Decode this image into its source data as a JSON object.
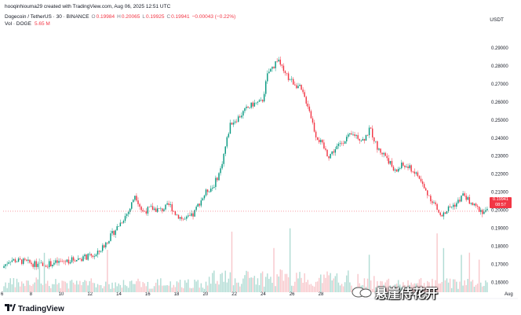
{
  "header": {
    "created_by": "hooqinhiouma29 created with TradingView.com, Aug 06, 2025 12:51 UTC"
  },
  "symbol_line": {
    "symbol": "Dogecoin / TetherUS · 30 · BINANCE",
    "open_label": "O",
    "open": "0.19984",
    "high_label": "H",
    "high": "0.20065",
    "low_label": "L",
    "low": "0.19925",
    "close_label": "C",
    "close": "0.19941",
    "change": "−0.00043 (−0.22%)"
  },
  "volume_line": {
    "label": "Vol · DOGE",
    "value": "5.65 M"
  },
  "currency": "USDT",
  "price_tag": {
    "price": "0.19941",
    "countdown": "08:57"
  },
  "branding": {
    "logo_text": "TradingView"
  },
  "watermark": {
    "text": "悬崖侍花开"
  },
  "colors": {
    "up": "#089981",
    "down": "#f23645",
    "up_volume": "#a8d8cf",
    "down_volume": "#f7c2c6"
  },
  "chart_data": {
    "type": "candlestick",
    "title": "",
    "x_ticks": [
      "6",
      "8",
      "10",
      "12",
      "14",
      "16",
      "18",
      "20",
      "22",
      "24",
      "26",
      "28",
      "Aug"
    ],
    "y_ticks": [
      "0.29000",
      "0.28000",
      "0.27000",
      "0.26000",
      "0.25000",
      "0.24000",
      "0.23000",
      "0.22000",
      "0.21000",
      "0.20000",
      "0.19000",
      "0.18000",
      "0.17000",
      "0.16000"
    ],
    "ylim": [
      0.1545,
      0.297
    ],
    "grid": false,
    "price_path": [
      [
        0,
        0.168
      ],
      [
        0.5,
        0.1725
      ],
      [
        1.5,
        0.1715
      ],
      [
        2.5,
        0.1695
      ],
      [
        3.5,
        0.1705
      ],
      [
        4.5,
        0.172
      ],
      [
        5.5,
        0.1735
      ],
      [
        6.5,
        0.175
      ],
      [
        7,
        0.18
      ],
      [
        8,
        0.191
      ],
      [
        8.8,
        0.2
      ],
      [
        9.2,
        0.209
      ],
      [
        9.7,
        0.199
      ],
      [
        10.3,
        0.201
      ],
      [
        11,
        0.2
      ],
      [
        11.6,
        0.203
      ],
      [
        12,
        0.198
      ],
      [
        12.6,
        0.1945
      ],
      [
        13.2,
        0.197
      ],
      [
        13.6,
        0.2035
      ],
      [
        14.2,
        0.211
      ],
      [
        14.6,
        0.213
      ],
      [
        15.1,
        0.222
      ],
      [
        15.8,
        0.248
      ],
      [
        16.3,
        0.251
      ],
      [
        16.9,
        0.256
      ],
      [
        17.4,
        0.259
      ],
      [
        18,
        0.26
      ],
      [
        18.4,
        0.276
      ],
      [
        18.8,
        0.28
      ],
      [
        19.1,
        0.2845
      ],
      [
        19.5,
        0.276
      ],
      [
        20,
        0.272
      ],
      [
        20.6,
        0.268
      ],
      [
        21.2,
        0.258
      ],
      [
        21.7,
        0.242
      ],
      [
        22.1,
        0.237
      ],
      [
        22.6,
        0.23
      ],
      [
        23.2,
        0.235
      ],
      [
        23.8,
        0.24
      ],
      [
        24.4,
        0.242
      ],
      [
        25,
        0.239
      ],
      [
        25.5,
        0.245
      ],
      [
        26,
        0.234
      ],
      [
        26.6,
        0.23
      ],
      [
        27.2,
        0.221
      ],
      [
        27.7,
        0.225
      ],
      [
        28.3,
        0.223
      ],
      [
        28.8,
        0.219
      ],
      [
        29.3,
        0.211
      ],
      [
        29.9,
        0.204
      ],
      [
        30.4,
        0.196
      ],
      [
        30.9,
        0.201
      ],
      [
        31.5,
        0.204
      ],
      [
        32,
        0.209
      ],
      [
        32.3,
        0.205
      ],
      [
        32.8,
        0.2015
      ],
      [
        33.3,
        0.1994
      ]
    ],
    "volume_ylim": [
      0,
      5.65
    ]
  }
}
